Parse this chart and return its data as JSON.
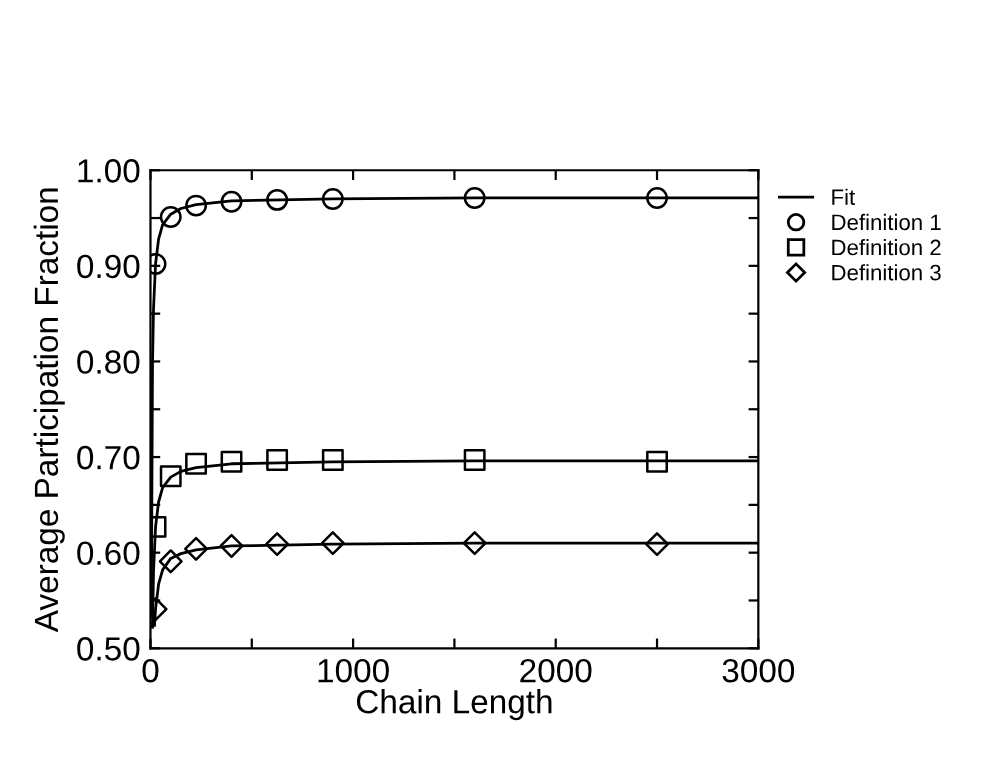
{
  "chart_data": {
    "type": "scatter",
    "xlabel": "Chain Length",
    "ylabel": "Average Participation Fraction",
    "xlim": [
      0,
      3000
    ],
    "ylim": [
      0.5,
      1.0
    ],
    "xticks": [
      0,
      {
        "value": 500,
        "label": null
      },
      1000,
      {
        "value": 1500,
        "label": null
      },
      2000,
      {
        "value": 2500,
        "label": null
      },
      3000
    ],
    "yticks": [
      {
        "value": 0.5,
        "label": "0.50"
      },
      {
        "value": 0.55,
        "label": null
      },
      {
        "value": 0.6,
        "label": "0.60"
      },
      {
        "value": 0.65,
        "label": null
      },
      {
        "value": 0.7,
        "label": "0.70"
      },
      {
        "value": 0.75,
        "label": null
      },
      {
        "value": 0.8,
        "label": "0.80"
      },
      {
        "value": 0.85,
        "label": null
      },
      {
        "value": 0.9,
        "label": "0.90"
      },
      {
        "value": 0.95,
        "label": null
      },
      {
        "value": 1.0,
        "label": "1.00"
      }
    ],
    "grid": false,
    "legend": "top right",
    "series": [
      {
        "type": "line",
        "name": "Fit",
        "color": "#000000",
        "marker": "none",
        "line_style": "solid",
        "x": [
          4,
          10,
          15,
          25,
          40,
          60,
          100,
          150,
          225,
          400,
          900,
          1600,
          3000
        ],
        "values": [
          0.535,
          0.797,
          0.855,
          0.902,
          0.928,
          0.943,
          0.954,
          0.96,
          0.964,
          0.968,
          0.97,
          0.971,
          0.971
        ]
      },
      {
        "type": "line",
        "color": "#000000",
        "marker": "none",
        "line_style": "solid",
        "x": [
          10,
          15,
          25,
          40,
          60,
          100,
          150,
          225,
          400,
          900,
          1600,
          3000
        ],
        "values": [
          0.522,
          0.58,
          0.627,
          0.653,
          0.668,
          0.679,
          0.685,
          0.689,
          0.693,
          0.695,
          0.696,
          0.696
        ]
      },
      {
        "type": "line",
        "color": "#000000",
        "marker": "none",
        "line_style": "solid",
        "x": [
          20,
          25,
          40,
          60,
          100,
          150,
          225,
          400,
          900,
          1600,
          3000
        ],
        "values": [
          0.524,
          0.541,
          0.567,
          0.582,
          0.594,
          0.599,
          0.603,
          0.607,
          0.609,
          0.61,
          0.61
        ]
      },
      {
        "name": "Definition 1",
        "color": "#000000",
        "marker": "circle",
        "x": [
          25,
          100,
          225,
          400,
          625,
          900,
          1600,
          2500
        ],
        "values": [
          0.902,
          0.951,
          0.963,
          0.967,
          0.969,
          0.97,
          0.971,
          0.971
        ]
      },
      {
        "name": "Definition 2",
        "color": "#000000",
        "marker": "square",
        "x": [
          25,
          100,
          225,
          400,
          625,
          900,
          1600,
          2500
        ],
        "values": [
          0.627,
          0.68,
          0.693,
          0.695,
          0.697,
          0.697,
          0.697,
          0.695
        ]
      },
      {
        "name": "Definition 3",
        "color": "#000000",
        "marker": "diamond",
        "x": [
          25,
          100,
          225,
          400,
          625,
          900,
          1600,
          2500
        ],
        "values": [
          0.541,
          0.591,
          0.604,
          0.607,
          0.609,
          0.61,
          0.61,
          0.609
        ]
      }
    ]
  }
}
